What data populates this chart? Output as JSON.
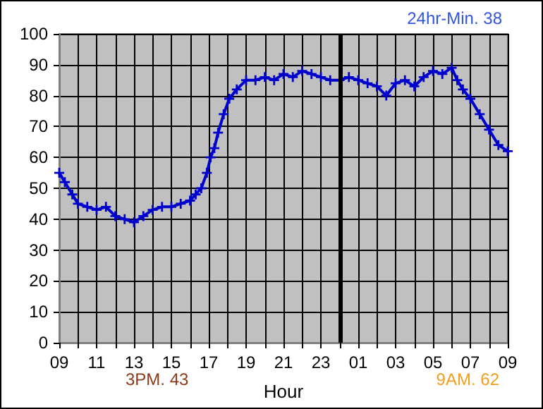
{
  "chart_data": {
    "type": "line",
    "xlabel": "Hour",
    "annotations": [
      "24hr-Min. 38",
      "3PM. 43",
      "9AM. 62"
    ],
    "x": [
      "--01-01T09:00",
      "--01-01T09:18",
      "--01-01T09:42",
      "--01-01T10:00",
      "--01-01T10:30",
      "--01-01T11:00",
      "--01-01T11:30",
      "--01-01T12:00",
      "--01-01T12:30",
      "--01-01T13:00",
      "--01-01T13:30",
      "--01-01T14:00",
      "--01-01T14:30",
      "--01-01T15:00",
      "--01-01T15:30",
      "--01-01T16:00",
      "--01-01T16:18",
      "--01-01T16:36",
      "--01-01T16:54",
      "--01-01T17:06",
      "--01-01T17:18",
      "--01-01T17:30",
      "--01-01T17:48",
      "--01-01T18:06",
      "--01-01T18:30",
      "--01-01T19:00",
      "--01-01T19:30",
      "--01-01T20:00",
      "--01-01T20:30",
      "--01-01T21:00",
      "--01-01T21:30",
      "--01-01T22:00",
      "--01-01T22:30",
      "--01-01T23:00",
      "--01-01T23:30",
      "--01-02T00:00",
      "--01-02T00:30",
      "--01-02T01:00",
      "--01-02T01:30",
      "--01-02T02:00",
      "--01-02T02:30",
      "--01-02T03:00",
      "--01-02T03:30",
      "--01-02T04:00",
      "--01-02T04:30",
      "--01-02T05:00",
      "--01-02T05:30",
      "--01-02T06:00",
      "--01-02T06:18",
      "--01-02T06:36",
      "--01-02T07:00",
      "--01-02T07:30",
      "--01-02T08:00",
      "--01-02T08:30",
      "--01-02T09:00"
    ],
    "series": [
      {
        "color": "#0000cc",
        "values": [
          55,
          52,
          48,
          45,
          44,
          43,
          44,
          41,
          40,
          39,
          41,
          43,
          44,
          44,
          45,
          46,
          48,
          50,
          55,
          60,
          63,
          68,
          74,
          79,
          82,
          85,
          85,
          86,
          85,
          87,
          86,
          88,
          87,
          86,
          85,
          85,
          86,
          85,
          84,
          83,
          80,
          84,
          85,
          83,
          86,
          88,
          87,
          89,
          85,
          82,
          79,
          74,
          69,
          64,
          62
        ]
      }
    ],
    "xlim": [
      "--01-01T09:00",
      "--01-02T09:00"
    ],
    "ylim": [
      0,
      100
    ],
    "xticks": [
      {
        "value": "--01-01T09:00",
        "label": "09"
      },
      {
        "value": "--01-01T10:00",
        "label": null
      },
      {
        "value": "--01-01T11:00",
        "label": "11"
      },
      {
        "value": "--01-01T12:00",
        "label": null
      },
      {
        "value": "--01-01T13:00",
        "label": "13"
      },
      {
        "value": "--01-01T14:00",
        "label": null
      },
      {
        "value": "--01-01T15:00",
        "label": "15"
      },
      {
        "value": "--01-01T16:00",
        "label": null
      },
      {
        "value": "--01-01T17:00",
        "label": "17"
      },
      {
        "value": "--01-01T18:00",
        "label": null
      },
      {
        "value": "--01-01T19:00",
        "label": "19"
      },
      {
        "value": "--01-01T20:00",
        "label": null
      },
      {
        "value": "--01-01T21:00",
        "label": "21"
      },
      {
        "value": "--01-01T22:00",
        "label": null
      },
      {
        "value": "--01-01T23:00",
        "label": "23"
      },
      {
        "value": "--01-02T00:00",
        "label": null
      },
      {
        "value": "--01-02T01:00",
        "label": "01"
      },
      {
        "value": "--01-02T02:00",
        "label": null
      },
      {
        "value": "--01-02T03:00",
        "label": "03"
      },
      {
        "value": "--01-02T04:00",
        "label": null
      },
      {
        "value": "--01-02T05:00",
        "label": "05"
      },
      {
        "value": "--01-02T06:00",
        "label": null
      },
      {
        "value": "--01-02T07:00",
        "label": "07"
      },
      {
        "value": "--01-02T08:00",
        "label": null
      },
      {
        "value": "--01-02T09:00",
        "label": "09"
      }
    ],
    "yticks": [
      0,
      10,
      20,
      30,
      40,
      50,
      60,
      70,
      80,
      90,
      100
    ],
    "ref_lines": [
      {
        "axis": "x",
        "value": "--01-02T00:00",
        "label": null,
        "color": "#000000"
      }
    ],
    "grid": true,
    "marker": "cross",
    "line_style": "solid"
  }
}
